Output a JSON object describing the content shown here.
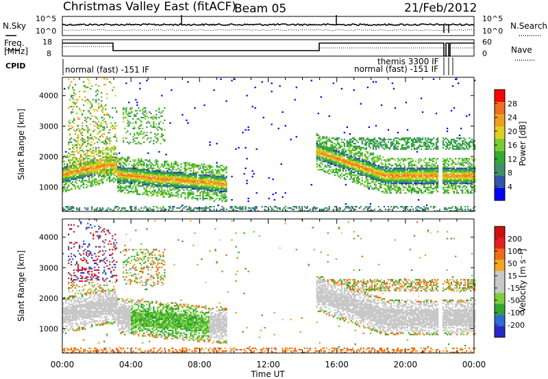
{
  "header": {
    "site": "Christmas Valley East (fitACF)",
    "beam": "Beam 05",
    "date": "21/Feb/2012"
  },
  "noise_panel": {
    "left_label": "N.Sky",
    "right_label": "N.Search",
    "y_ticks_left": [
      "10^5",
      "10^0"
    ],
    "y_ticks_right": [
      "10^5",
      "10^0"
    ]
  },
  "freq_panel": {
    "left_label_1": "Freq.",
    "left_label_2": "[MHz]",
    "right_label": "Nave",
    "y_ticks_left": [
      "18",
      "8"
    ],
    "y_ticks_right": [
      "60",
      "0"
    ]
  },
  "cpid_panel": {
    "label": "CPID",
    "modes": [
      "normal (fast) -151 IF",
      "themis 3300 IF",
      "normal (fast) -151 IF"
    ]
  },
  "colors": {
    "power": [
      "#0000ff",
      "#3355aa",
      "#3f8f6a",
      "#33aa33",
      "#7acc33",
      "#e0d020",
      "#f0a020",
      "#f07020",
      "#ff0000"
    ],
    "velocity": [
      "#2828c8",
      "#2f6ad6",
      "#32a532",
      "#7ccf3a",
      "#c8c8c8",
      "#c8c8c8",
      "#f5a623",
      "#ef6c1c",
      "#e32020",
      "#d01010"
    ]
  },
  "chart_data": [
    {
      "type": "heatmap",
      "title": "",
      "quantity": "Power",
      "ylabel": "Slant Range [km]",
      "y_ticks": [
        "1000",
        "2000",
        "3000",
        "4000"
      ],
      "ylim": [
        200,
        4600
      ],
      "x_ticks": [
        "00:00",
        "04:00",
        "08:00",
        "12:00",
        "16:00",
        "20:00",
        "00:00"
      ],
      "xlim_hours": [
        0,
        24
      ],
      "colorbar_label": "Power [dB]",
      "colorbar_ticks": [
        "28",
        "24",
        "20",
        "16",
        "12",
        "8",
        "4"
      ],
      "colorbar_range": [
        0,
        32
      ]
    },
    {
      "type": "heatmap",
      "title": "",
      "quantity": "Velocity",
      "ylabel": "Slant Range [km]",
      "y_ticks": [
        "1000",
        "2000",
        "3000",
        "4000"
      ],
      "ylim": [
        200,
        4600
      ],
      "x_ticks": [
        "00:00",
        "04:00",
        "08:00",
        "12:00",
        "16:00",
        "20:00",
        "00:00"
      ],
      "xlim_hours": [
        0,
        24
      ],
      "xlabel": "Time UT",
      "colorbar_label": "Velocity [m s⁻¹]",
      "colorbar_ticks": [
        "200",
        "100",
        "50",
        "15",
        "-15",
        "-50",
        "-100",
        "-200"
      ]
    }
  ]
}
